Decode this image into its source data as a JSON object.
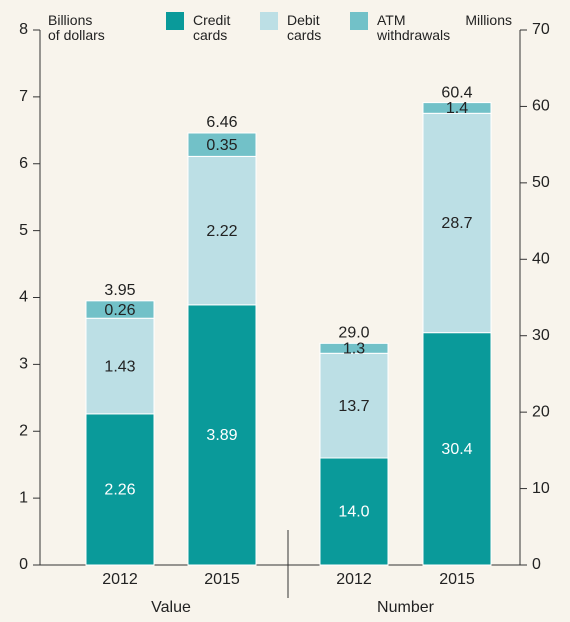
{
  "chart_data": {
    "type": "stacked_bar",
    "ylabel": "Billions\nof dollars",
    "y2label": "Millions",
    "ylim": [
      0,
      8
    ],
    "yticks": [
      0,
      1,
      2,
      3,
      4,
      5,
      6,
      7,
      8
    ],
    "y2lim": [
      0,
      70
    ],
    "y2ticks": [
      0,
      10,
      20,
      30,
      40,
      50,
      60,
      70
    ],
    "categories": [
      "2012",
      "2015",
      "2012",
      "2015"
    ],
    "category_axes": [
      "y",
      "y",
      "y2",
      "y2"
    ],
    "groups": [
      {
        "label": "Value",
        "axis": "y"
      },
      {
        "label": "Number",
        "axis": "y2"
      }
    ],
    "series": [
      {
        "name": "Credit\ncards",
        "color": "#0a9a9a",
        "values": [
          2.26,
          3.89,
          14.0,
          30.4
        ],
        "value_labels": [
          "2.26",
          "3.89",
          "14.0",
          "30.4"
        ]
      },
      {
        "name": "Debit\ncards",
        "color": "#bcdfe5",
        "values": [
          1.43,
          2.22,
          13.7,
          28.7
        ]
      },
      {
        "name": "ATM\nwithdrawals",
        "color": "#72c1c8",
        "values": [
          0.26,
          0.35,
          1.3,
          1.4
        ]
      }
    ],
    "totals": {
      "values": [
        3.95,
        6.46,
        29.0,
        60.4
      ],
      "value_labels": [
        "3.95",
        "6.46",
        "29.0",
        "60.4"
      ]
    }
  }
}
